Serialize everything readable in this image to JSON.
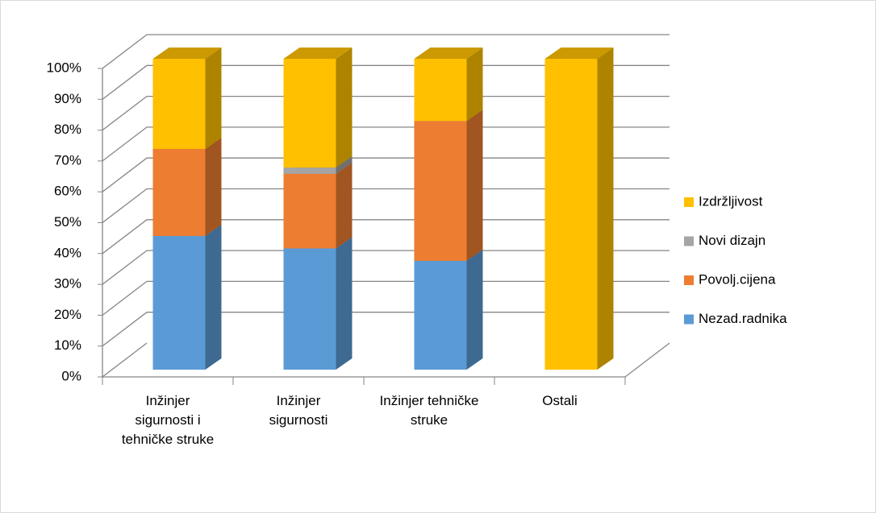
{
  "chart_data": {
    "type": "bar3d_stacked",
    "categories": [
      "Inžinjer sigurnosti i tehničke struke",
      "Inžinjer sigurnosti",
      "Inžinjer tehničke struke",
      "Ostali"
    ],
    "series": [
      {
        "name": "Nezad.radnika",
        "color": "#5b9bd5",
        "values": [
          43,
          39,
          35,
          0
        ]
      },
      {
        "name": "Povolj.cijena",
        "color": "#ed7d31",
        "values": [
          28,
          24,
          45,
          0
        ]
      },
      {
        "name": "Novi dizajn",
        "color": "#a5a5a5",
        "values": [
          0,
          2,
          0,
          0
        ]
      },
      {
        "name": "Izdržljivost",
        "color": "#ffc000",
        "values": [
          29,
          35,
          20,
          100
        ]
      }
    ],
    "ylim": [
      0,
      100
    ],
    "yticks": [
      {
        "value": 0,
        "label": "0%"
      },
      {
        "value": 10,
        "label": "10%"
      },
      {
        "value": 20,
        "label": "20%"
      },
      {
        "value": 30,
        "label": "30%"
      },
      {
        "value": 40,
        "label": "40%"
      },
      {
        "value": 50,
        "label": "50%"
      },
      {
        "value": 60,
        "label": "60%"
      },
      {
        "value": 70,
        "label": "70%"
      },
      {
        "value": 80,
        "label": "80%"
      },
      {
        "value": 90,
        "label": "90%"
      },
      {
        "value": 100,
        "label": "100%"
      }
    ],
    "grid": true,
    "legend": "right"
  }
}
